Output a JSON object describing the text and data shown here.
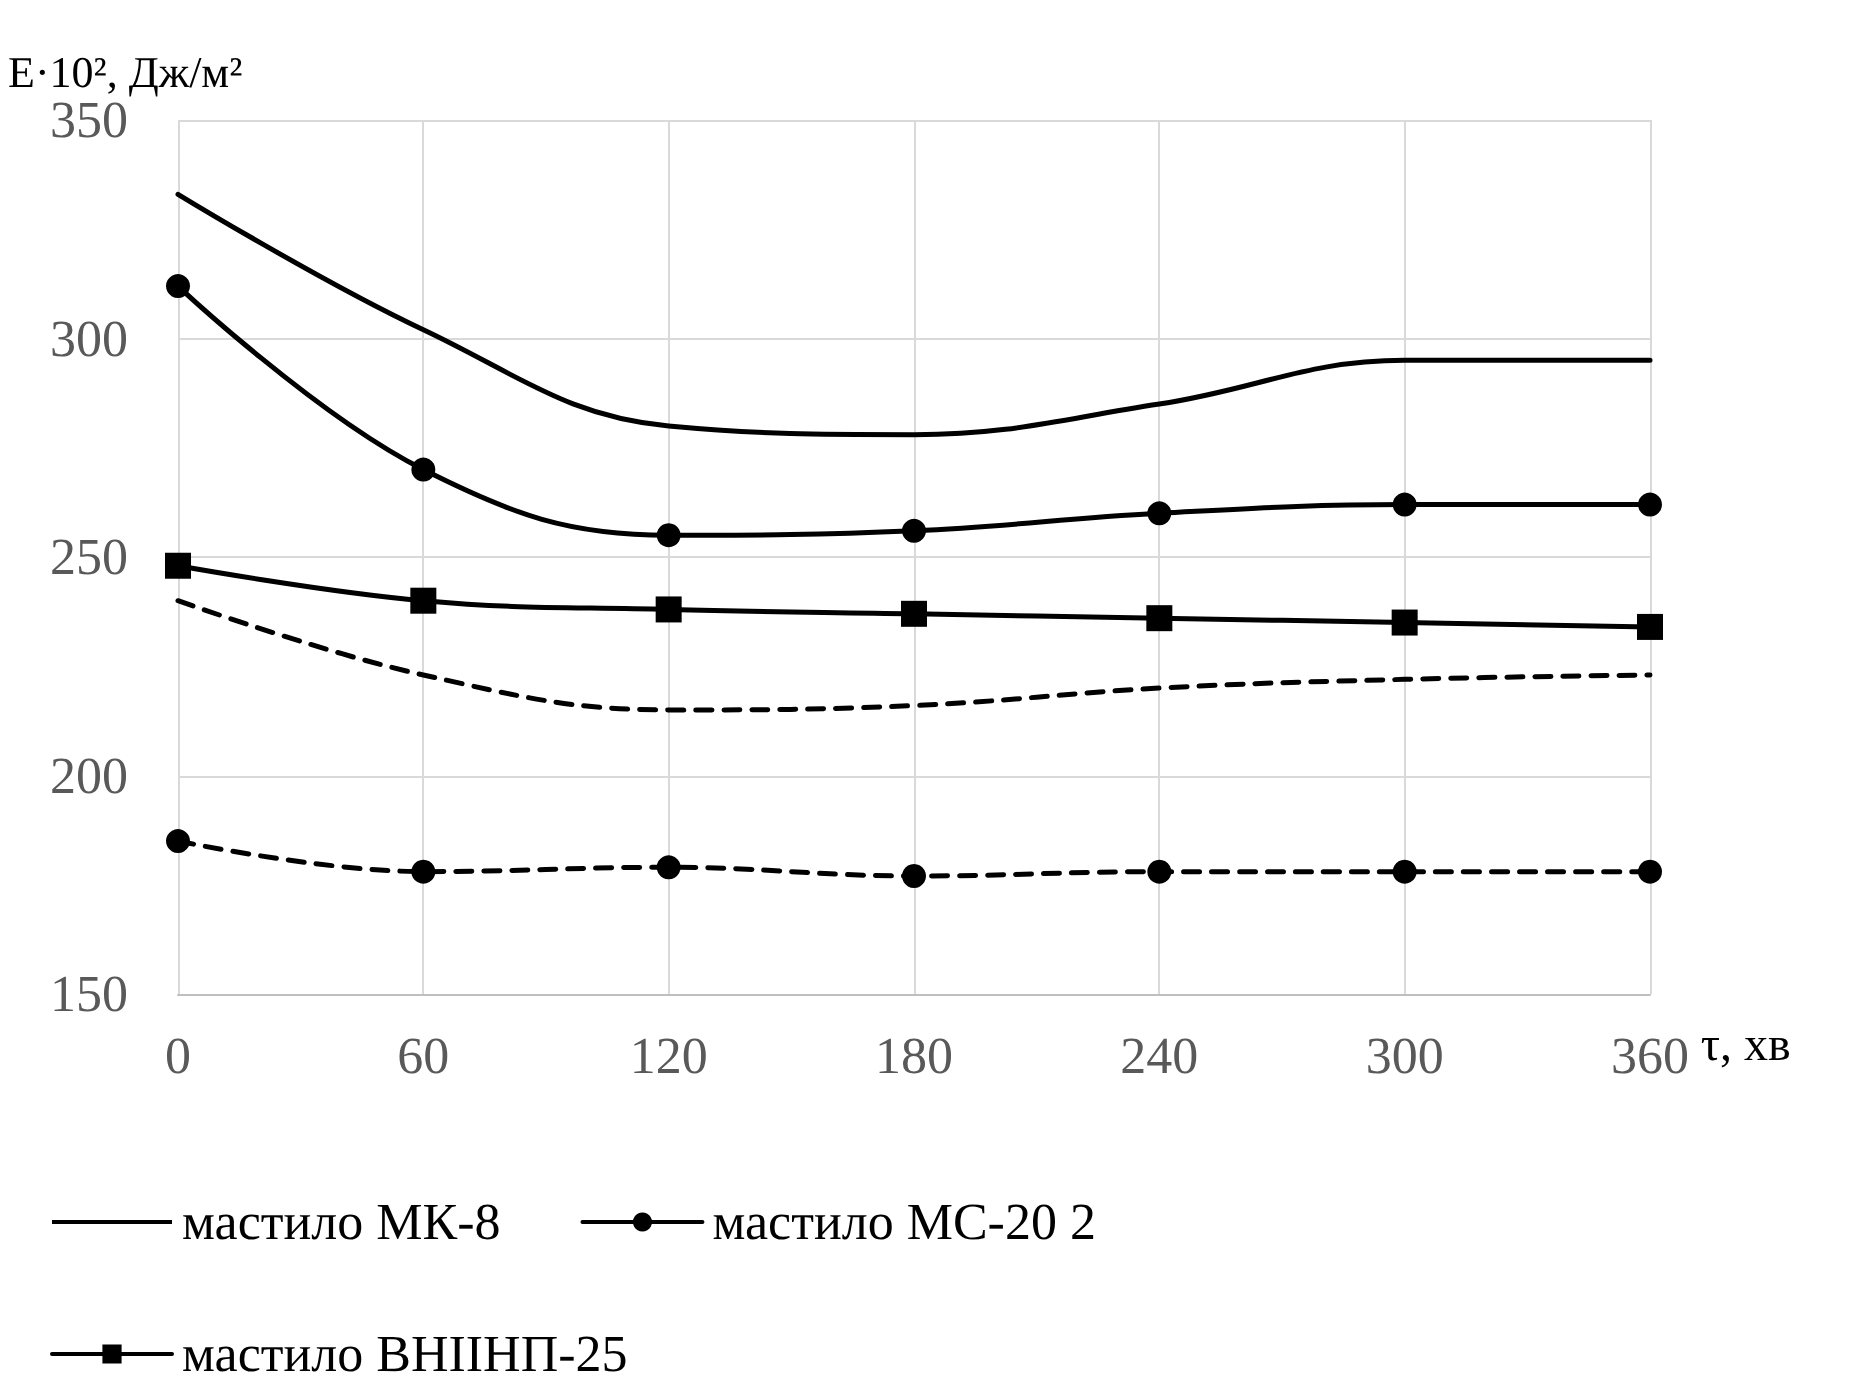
{
  "chart_data": {
    "type": "line",
    "xlabel": "τ, хв",
    "ylabel": "E·10², Дж/м²",
    "x": [
      0,
      60,
      120,
      180,
      240,
      300,
      360
    ],
    "xlim": [
      0,
      360
    ],
    "xticks": [
      0,
      60,
      120,
      180,
      240,
      300,
      360
    ],
    "ylim": [
      150,
      350
    ],
    "yticks": [
      150,
      200,
      250,
      300,
      350
    ],
    "grid": true,
    "legend": "bottom",
    "series": [
      {
        "name": "мастило МК-8",
        "color": "#000000",
        "marker": "none",
        "line_style": "solid",
        "values": [
          333,
          302,
          280,
          278,
          285,
          295,
          295
        ]
      },
      {
        "name": "мастило МС-20 2",
        "color": "#000000",
        "marker": "circle",
        "line_style": "solid",
        "values": [
          312,
          270,
          255,
          256,
          260,
          262,
          262
        ]
      },
      {
        "name": "мастило ВНІІНП-25",
        "color": "#000000",
        "marker": "square",
        "line_style": "solid",
        "values": [
          248,
          240,
          238,
          237,
          236,
          235,
          234
        ]
      },
      {
        "color": "#000000",
        "marker": "circle",
        "line_style": "dashed",
        "values": [
          185,
          178,
          179,
          177,
          178,
          178,
          178
        ]
      },
      {
        "color": "#000000",
        "marker": "none",
        "line_style": "dashed",
        "values": [
          240,
          223,
          215,
          216,
          220,
          222,
          223
        ]
      }
    ]
  }
}
